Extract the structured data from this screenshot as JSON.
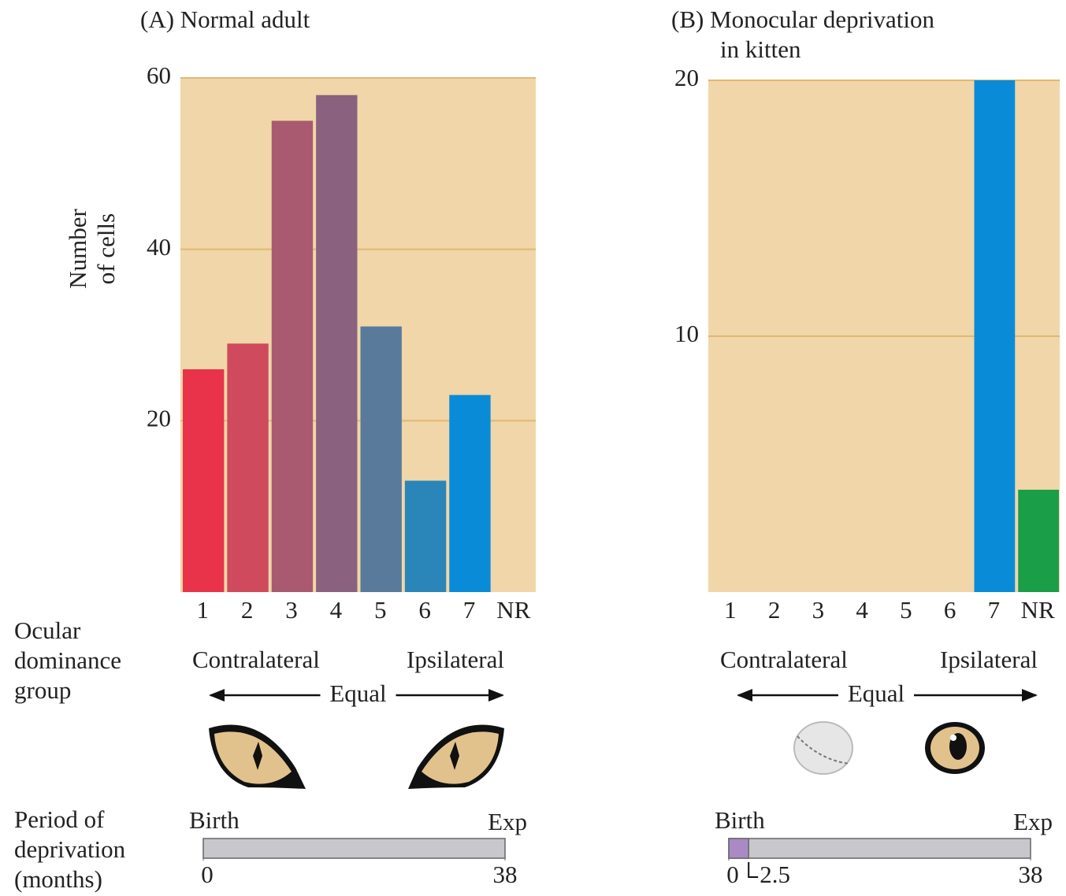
{
  "row_labels": {
    "ocular": [
      "Ocular",
      "dominance",
      "group"
    ],
    "period": [
      "Period of",
      "deprivation",
      "(months)"
    ]
  },
  "chart_data": [
    {
      "type": "bar",
      "title": [
        "(A)  Normal adult"
      ],
      "ylabel": [
        "Number",
        "of cells"
      ],
      "categories": [
        "1",
        "2",
        "3",
        "4",
        "5",
        "6",
        "7",
        "NR"
      ],
      "values": [
        26,
        29,
        55,
        58,
        31,
        13,
        23,
        0
      ],
      "colors": [
        "#e8334a",
        "#cf4a5c",
        "#a95a70",
        "#8a627f",
        "#5a7a9c",
        "#2a86b8",
        "#0a8bd8",
        "#1a9e48"
      ],
      "ylim": [
        0,
        60
      ],
      "yticks": [
        20,
        40,
        60
      ],
      "grid": true,
      "background": "#f0d6a8",
      "annotations": {
        "left": "Contralateral",
        "right": "Ipsilateral",
        "middle": "Equal"
      },
      "timeline": {
        "start": "Birth",
        "end": "Exp",
        "xlim": [
          0,
          38
        ],
        "xticks": [
          0,
          38
        ]
      }
    },
    {
      "type": "bar",
      "title": [
        "(B)  Monocular deprivation",
        "in kitten"
      ],
      "categories": [
        "1",
        "2",
        "3",
        "4",
        "5",
        "6",
        "7",
        "NR"
      ],
      "values": [
        0,
        0,
        0,
        0,
        0,
        0,
        20,
        4
      ],
      "colors": [
        "#e8334a",
        "#cf4a5c",
        "#a95a70",
        "#8a627f",
        "#5a7a9c",
        "#2a86b8",
        "#0a8bd8",
        "#1a9e48"
      ],
      "ylim": [
        0,
        20
      ],
      "yticks": [
        10,
        20
      ],
      "grid": true,
      "background": "#f0d6a8",
      "annotations": {
        "left": "Contralateral",
        "right": "Ipsilateral",
        "middle": "Equal"
      },
      "timeline": {
        "start": "Birth",
        "end": "Exp",
        "xlim": [
          0,
          38
        ],
        "xticks": [
          0,
          2.5,
          38
        ],
        "deprived": [
          0,
          2.5
        ],
        "deprived_color": "#a98ac4"
      }
    }
  ]
}
